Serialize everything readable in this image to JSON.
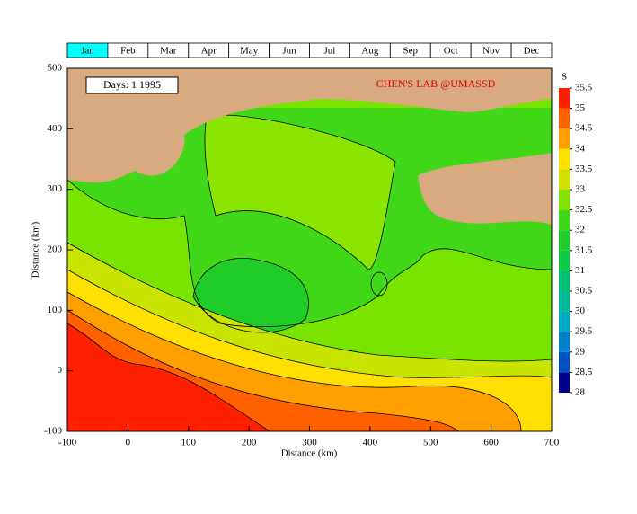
{
  "chart_data": {
    "type": "contour",
    "tabs": [
      "Jan",
      "Feb",
      "Mar",
      "Apr",
      "May",
      "Jun",
      "Jul",
      "Aug",
      "Sep",
      "Oct",
      "Nov",
      "Dec"
    ],
    "selected_tab": 0,
    "day_label": "Days:  1  1995",
    "credit": "CHEN'S  LAB @UMASSD",
    "xlabel": "Distance (km)",
    "ylabel": "Distance (km)",
    "xlim": [
      -100,
      700
    ],
    "xticks": [
      -100,
      0,
      100,
      200,
      300,
      400,
      500,
      600,
      700
    ],
    "ylim": [
      -100,
      500
    ],
    "yticks": [
      -100,
      0,
      100,
      200,
      300,
      400,
      500
    ],
    "colorbar": {
      "label": "S",
      "ticks": [
        28,
        28.5,
        29,
        29.5,
        30,
        30.5,
        31,
        31.5,
        32,
        32.5,
        33,
        33.5,
        34,
        34.5,
        35,
        35.5
      ],
      "colors": [
        "#00008b",
        "#0050c0",
        "#0080c8",
        "#00a8c0",
        "#00b898",
        "#00c070",
        "#10c848",
        "#20cc28",
        "#40d818",
        "#80e400",
        "#d0e000",
        "#ffe000",
        "#ffa000",
        "#ff6000",
        "#ff2000"
      ]
    }
  }
}
